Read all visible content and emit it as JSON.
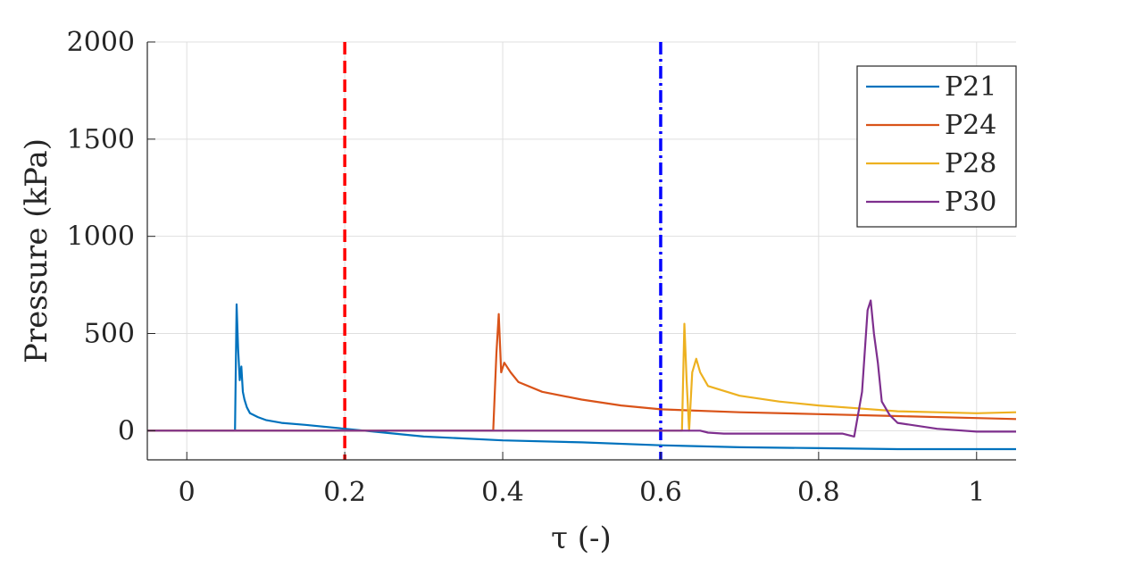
{
  "chart_data": {
    "type": "line",
    "xlabel": "τ (-)",
    "ylabel": "Pressure (kPa)",
    "xlim": [
      -0.05,
      1.05
    ],
    "ylim": [
      -150,
      2000
    ],
    "xticks": [
      0,
      0.2,
      0.4,
      0.6,
      0.8,
      1
    ],
    "xtick_labels": [
      "0",
      "0.2",
      "0.4",
      "0.6",
      "0.8",
      "1"
    ],
    "yticks": [
      0,
      500,
      1000,
      1500,
      2000
    ],
    "ytick_labels": [
      "0",
      "500",
      "1000",
      "1500",
      "2000"
    ],
    "grid": true,
    "legend_position": "top-right",
    "vlines": [
      {
        "x": 0.2,
        "color": "#ff0000",
        "style": "dashed"
      },
      {
        "x": 0.6,
        "color": "#0000ff",
        "style": "dash-dot"
      }
    ],
    "series": [
      {
        "name": "P21",
        "color": "#0072bd",
        "x": [
          -0.05,
          0.061,
          0.063,
          0.065,
          0.067,
          0.069,
          0.071,
          0.073,
          0.076,
          0.08,
          0.09,
          0.1,
          0.12,
          0.15,
          0.2,
          0.25,
          0.3,
          0.4,
          0.5,
          0.6,
          0.7,
          0.8,
          0.9,
          1.0,
          1.05
        ],
        "y": [
          0,
          0,
          650,
          420,
          260,
          330,
          200,
          160,
          120,
          90,
          70,
          55,
          40,
          30,
          10,
          -10,
          -30,
          -50,
          -60,
          -75,
          -85,
          -90,
          -95,
          -95,
          -95
        ]
      },
      {
        "name": "P24",
        "color": "#d95319",
        "x": [
          -0.05,
          0.388,
          0.392,
          0.395,
          0.398,
          0.402,
          0.41,
          0.42,
          0.45,
          0.5,
          0.55,
          0.6,
          0.7,
          0.8,
          0.9,
          1.0,
          1.05
        ],
        "y": [
          0,
          0,
          400,
          600,
          300,
          350,
          300,
          250,
          200,
          160,
          130,
          110,
          95,
          85,
          75,
          65,
          60
        ]
      },
      {
        "name": "P28",
        "color": "#edb120",
        "x": [
          -0.05,
          0.627,
          0.63,
          0.633,
          0.636,
          0.64,
          0.645,
          0.65,
          0.66,
          0.7,
          0.75,
          0.8,
          0.85,
          0.9,
          0.95,
          1.0,
          1.05
        ],
        "y": [
          0,
          0,
          550,
          250,
          0,
          300,
          370,
          300,
          230,
          180,
          150,
          130,
          115,
          100,
          95,
          90,
          95
        ]
      },
      {
        "name": "P30",
        "color": "#7e2f8e",
        "x": [
          -0.05,
          0.65,
          0.66,
          0.68,
          0.75,
          0.83,
          0.845,
          0.855,
          0.862,
          0.866,
          0.87,
          0.875,
          0.88,
          0.89,
          0.9,
          0.95,
          1.0,
          1.05
        ],
        "y": [
          0,
          0,
          -10,
          -15,
          -15,
          -15,
          -30,
          200,
          620,
          670,
          500,
          350,
          150,
          80,
          40,
          10,
          -5,
          -5
        ]
      }
    ]
  }
}
